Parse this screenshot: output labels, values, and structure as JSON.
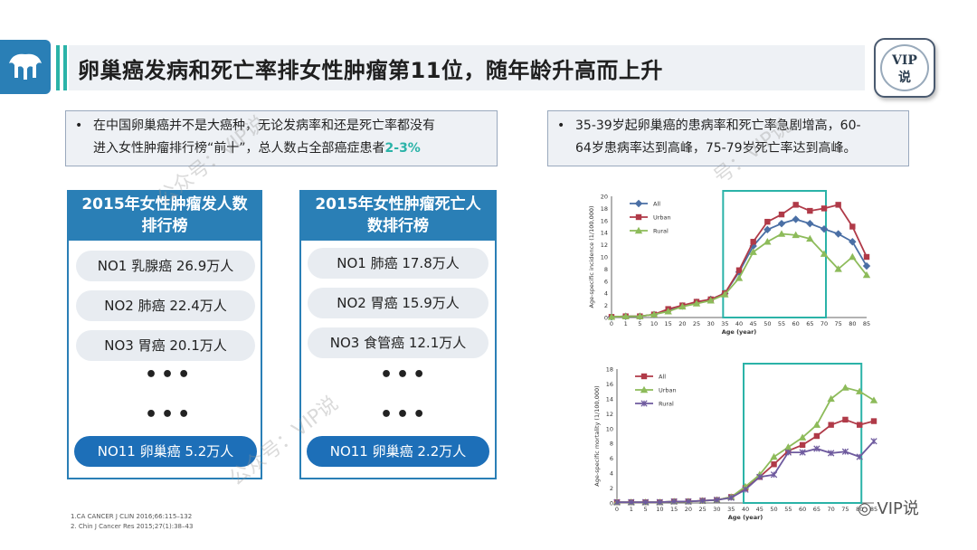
{
  "header": {
    "title": "卵巢癌发病和死亡率排女性肿瘤第11位，随年龄升高而上升",
    "badge_line1": "VIP",
    "badge_line2": "说"
  },
  "bullets": {
    "left": {
      "symbol": "•",
      "line1": "在中国卵巢癌并不是大癌种，无论发病率和还是死亡率都没有",
      "line2": "进入女性肿瘤排行榜“前十”，总人数占全部癌症患者",
      "highlight": "2-3%"
    },
    "right": {
      "symbol": "•",
      "line1": "35-39岁起卵巢癌的患病率和死亡率急剧增高，60-",
      "line2": "64岁患病率达到高峰，75-79岁死亡率达到高峰。"
    }
  },
  "incidence_rank": {
    "title_line1": "2015年女性肿瘤发人数",
    "title_line2": "排行榜",
    "items": [
      "NO1  乳腺癌 26.9万人",
      "NO2  肺癌 22.4万人",
      "NO3  胃癌 20.1万人"
    ],
    "ellipsis": "•••",
    "last": "NO11  卵巢癌 5.2万人"
  },
  "mortality_rank": {
    "title_line1": "2015年女性肿瘤死亡人",
    "title_line2": "数排行榜",
    "items": [
      "NO1  肺癌 17.8万人",
      "NO2  胃癌 15.9万人",
      "NO3  食管癌 12.1万人"
    ],
    "ellipsis": "•••",
    "last": "NO11  卵巢癌 2.2万人"
  },
  "references": {
    "r1": "1.CA CANCER J CLIN 2016;66:115–132",
    "r2": "2. Chin J Cancer Res 2015;27(1):38–43"
  },
  "watermarks": [
    "公众号：VIP说",
    "公众号：VIP说",
    "号：VIP说"
  ],
  "brand": "VIP说",
  "chart_data": [
    {
      "type": "line",
      "xlabel": "Age (year)",
      "ylabel": "Age-specific incidence (1/100,000)",
      "x": [
        0,
        1,
        5,
        10,
        15,
        20,
        25,
        30,
        35,
        40,
        45,
        50,
        55,
        60,
        65,
        70,
        75,
        80,
        85
      ],
      "xticks": [
        "0",
        "1",
        "5",
        "10",
        "15",
        "20",
        "25",
        "30",
        "35",
        "40",
        "45",
        "50",
        "55",
        "60",
        "65",
        "70",
        "75",
        "80",
        "85"
      ],
      "ylim": [
        0,
        20
      ],
      "yticks": [
        0,
        2,
        4,
        6,
        8,
        10,
        12,
        14,
        16,
        18,
        20
      ],
      "highlight_x": [
        35,
        70
      ],
      "legend_position": "top-left",
      "series": [
        {
          "name": "All",
          "color": "#4a6fa5",
          "marker": "diamond",
          "values": [
            0.1,
            0.2,
            0.2,
            0.5,
            1.2,
            1.9,
            2.5,
            3.0,
            4.0,
            7.5,
            11.8,
            14.5,
            15.5,
            16.2,
            15.5,
            14.6,
            13.8,
            12.5,
            8.5
          ]
        },
        {
          "name": "Urban",
          "color": "#b03a48",
          "marker": "square",
          "values": [
            0.1,
            0.2,
            0.2,
            0.5,
            1.4,
            2.0,
            2.6,
            3.0,
            4.0,
            7.8,
            12.5,
            15.8,
            17.0,
            18.6,
            17.6,
            18.0,
            18.6,
            15.0,
            10.0
          ]
        },
        {
          "name": "Rural",
          "color": "#8dbb5a",
          "marker": "triangle",
          "values": [
            0.1,
            0.2,
            0.2,
            0.5,
            1.0,
            1.8,
            2.3,
            2.8,
            3.8,
            6.5,
            10.8,
            12.5,
            13.8,
            13.6,
            13.0,
            10.5,
            8.0,
            10.0,
            7.0
          ]
        }
      ]
    },
    {
      "type": "line",
      "xlabel": "Age (year)",
      "ylabel": "Age-specific mortality (1/100,000)",
      "x": [
        0,
        1,
        5,
        10,
        15,
        20,
        25,
        30,
        35,
        40,
        45,
        50,
        55,
        60,
        65,
        70,
        75,
        80,
        85
      ],
      "xticks": [
        "0",
        "1",
        "5",
        "10",
        "15",
        "20",
        "25",
        "30",
        "35",
        "40",
        "45",
        "50",
        "55",
        "60",
        "65",
        "70",
        "75",
        "80",
        "85"
      ],
      "ylim": [
        0,
        18
      ],
      "yticks": [
        0,
        2,
        4,
        6,
        8,
        10,
        12,
        14,
        16,
        18
      ],
      "highlight_x": [
        40,
        80
      ],
      "legend_position": "top-left",
      "series": [
        {
          "name": "All",
          "color": "#b03a48",
          "marker": "square",
          "values": [
            0.1,
            0.1,
            0.1,
            0.1,
            0.2,
            0.2,
            0.3,
            0.4,
            0.8,
            2.0,
            3.5,
            5.2,
            7.0,
            7.8,
            9.0,
            10.5,
            11.2,
            10.5,
            11.0
          ]
        },
        {
          "name": "Urban",
          "color": "#8dbb5a",
          "marker": "triangle",
          "values": [
            0.1,
            0.1,
            0.1,
            0.1,
            0.2,
            0.2,
            0.3,
            0.4,
            0.8,
            2.2,
            3.8,
            6.2,
            7.5,
            8.8,
            10.5,
            14.0,
            15.5,
            15.0,
            13.8
          ]
        },
        {
          "name": "Rural",
          "color": "#6e5a9e",
          "marker": "cross",
          "values": [
            0.1,
            0.1,
            0.1,
            0.1,
            0.2,
            0.2,
            0.3,
            0.4,
            0.7,
            1.8,
            3.5,
            3.8,
            6.8,
            6.8,
            7.3,
            6.7,
            6.9,
            6.2,
            8.3
          ]
        }
      ]
    }
  ]
}
